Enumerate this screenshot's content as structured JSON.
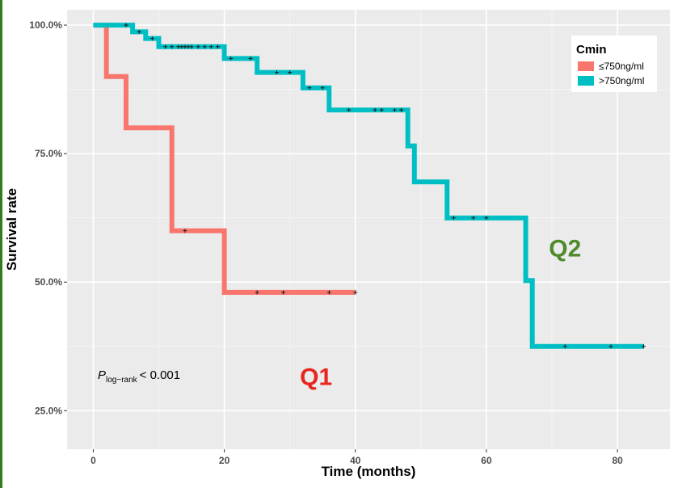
{
  "chart_data": {
    "type": "line",
    "step": true,
    "xlabel": "Time (months)",
    "ylabel": "Survival rate",
    "xlim": [
      -4,
      88
    ],
    "ylim": [
      17.5,
      103
    ],
    "xticks": [
      0,
      20,
      40,
      60,
      80
    ],
    "yticks": [
      25,
      50,
      75,
      100
    ],
    "ytick_labels": [
      "25.0%",
      "50.0%",
      "75.0%",
      "100.0%"
    ],
    "grid": true,
    "legend": {
      "title": "Cmin",
      "position": "top-right",
      "entries": [
        "≤750ng/ml",
        ">750ng/ml"
      ]
    },
    "series": [
      {
        "name": "≤750ng/ml",
        "color": "#f8766d",
        "steps": [
          [
            0,
            100
          ],
          [
            2,
            100
          ],
          [
            2,
            90
          ],
          [
            5,
            90
          ],
          [
            5,
            80
          ],
          [
            12,
            80
          ],
          [
            12,
            60
          ],
          [
            20,
            60
          ],
          [
            20,
            48
          ],
          [
            40,
            48
          ]
        ],
        "censored": [
          [
            14,
            60
          ],
          [
            25,
            48
          ],
          [
            29,
            48
          ],
          [
            36,
            48
          ],
          [
            40,
            48
          ]
        ]
      },
      {
        "name": ">750ng/ml",
        "color": "#00bfc4",
        "steps": [
          [
            0,
            100
          ],
          [
            6,
            100
          ],
          [
            6,
            98.7
          ],
          [
            8,
            98.7
          ],
          [
            8,
            97.4
          ],
          [
            10,
            97.4
          ],
          [
            10,
            95.8
          ],
          [
            20,
            95.8
          ],
          [
            20,
            93.5
          ],
          [
            25,
            93.5
          ],
          [
            25,
            90.8
          ],
          [
            32,
            90.8
          ],
          [
            32,
            87.8
          ],
          [
            36,
            87.8
          ],
          [
            36,
            83.5
          ],
          [
            48,
            83.5
          ],
          [
            48,
            76.5
          ],
          [
            49,
            76.5
          ],
          [
            49,
            69.5
          ],
          [
            54,
            69.5
          ],
          [
            54,
            62.5
          ],
          [
            66,
            62.5
          ],
          [
            66,
            50.3
          ],
          [
            67,
            50.3
          ],
          [
            67,
            37.5
          ],
          [
            84,
            37.5
          ]
        ],
        "censored": [
          [
            5,
            100
          ],
          [
            7,
            98.7
          ],
          [
            9,
            97.4
          ],
          [
            11,
            95.8
          ],
          [
            12,
            95.8
          ],
          [
            13,
            95.8
          ],
          [
            13.5,
            95.8
          ],
          [
            14,
            95.8
          ],
          [
            14.5,
            95.8
          ],
          [
            15,
            95.8
          ],
          [
            16,
            95.8
          ],
          [
            17,
            95.8
          ],
          [
            18,
            95.8
          ],
          [
            19,
            95.8
          ],
          [
            21,
            93.5
          ],
          [
            24,
            93.5
          ],
          [
            28,
            90.8
          ],
          [
            30,
            90.8
          ],
          [
            33,
            87.8
          ],
          [
            35,
            87.8
          ],
          [
            39,
            83.5
          ],
          [
            43,
            83.5
          ],
          [
            44,
            83.5
          ],
          [
            46,
            83.5
          ],
          [
            47,
            83.5
          ],
          [
            55,
            62.5
          ],
          [
            58,
            62.5
          ],
          [
            60,
            62.5
          ],
          [
            72,
            37.5
          ],
          [
            79,
            37.5
          ],
          [
            84,
            37.5
          ]
        ]
      }
    ],
    "annotations": [
      {
        "text": "Q1",
        "x": 34,
        "y": 30,
        "color": "#e8251e"
      },
      {
        "text": "Q2",
        "x": 72,
        "y": 55,
        "color": "#4f8a2d"
      }
    ],
    "pvalue": {
      "main": "P",
      "sub": "log−rank",
      "rest": "< 0.001"
    }
  }
}
